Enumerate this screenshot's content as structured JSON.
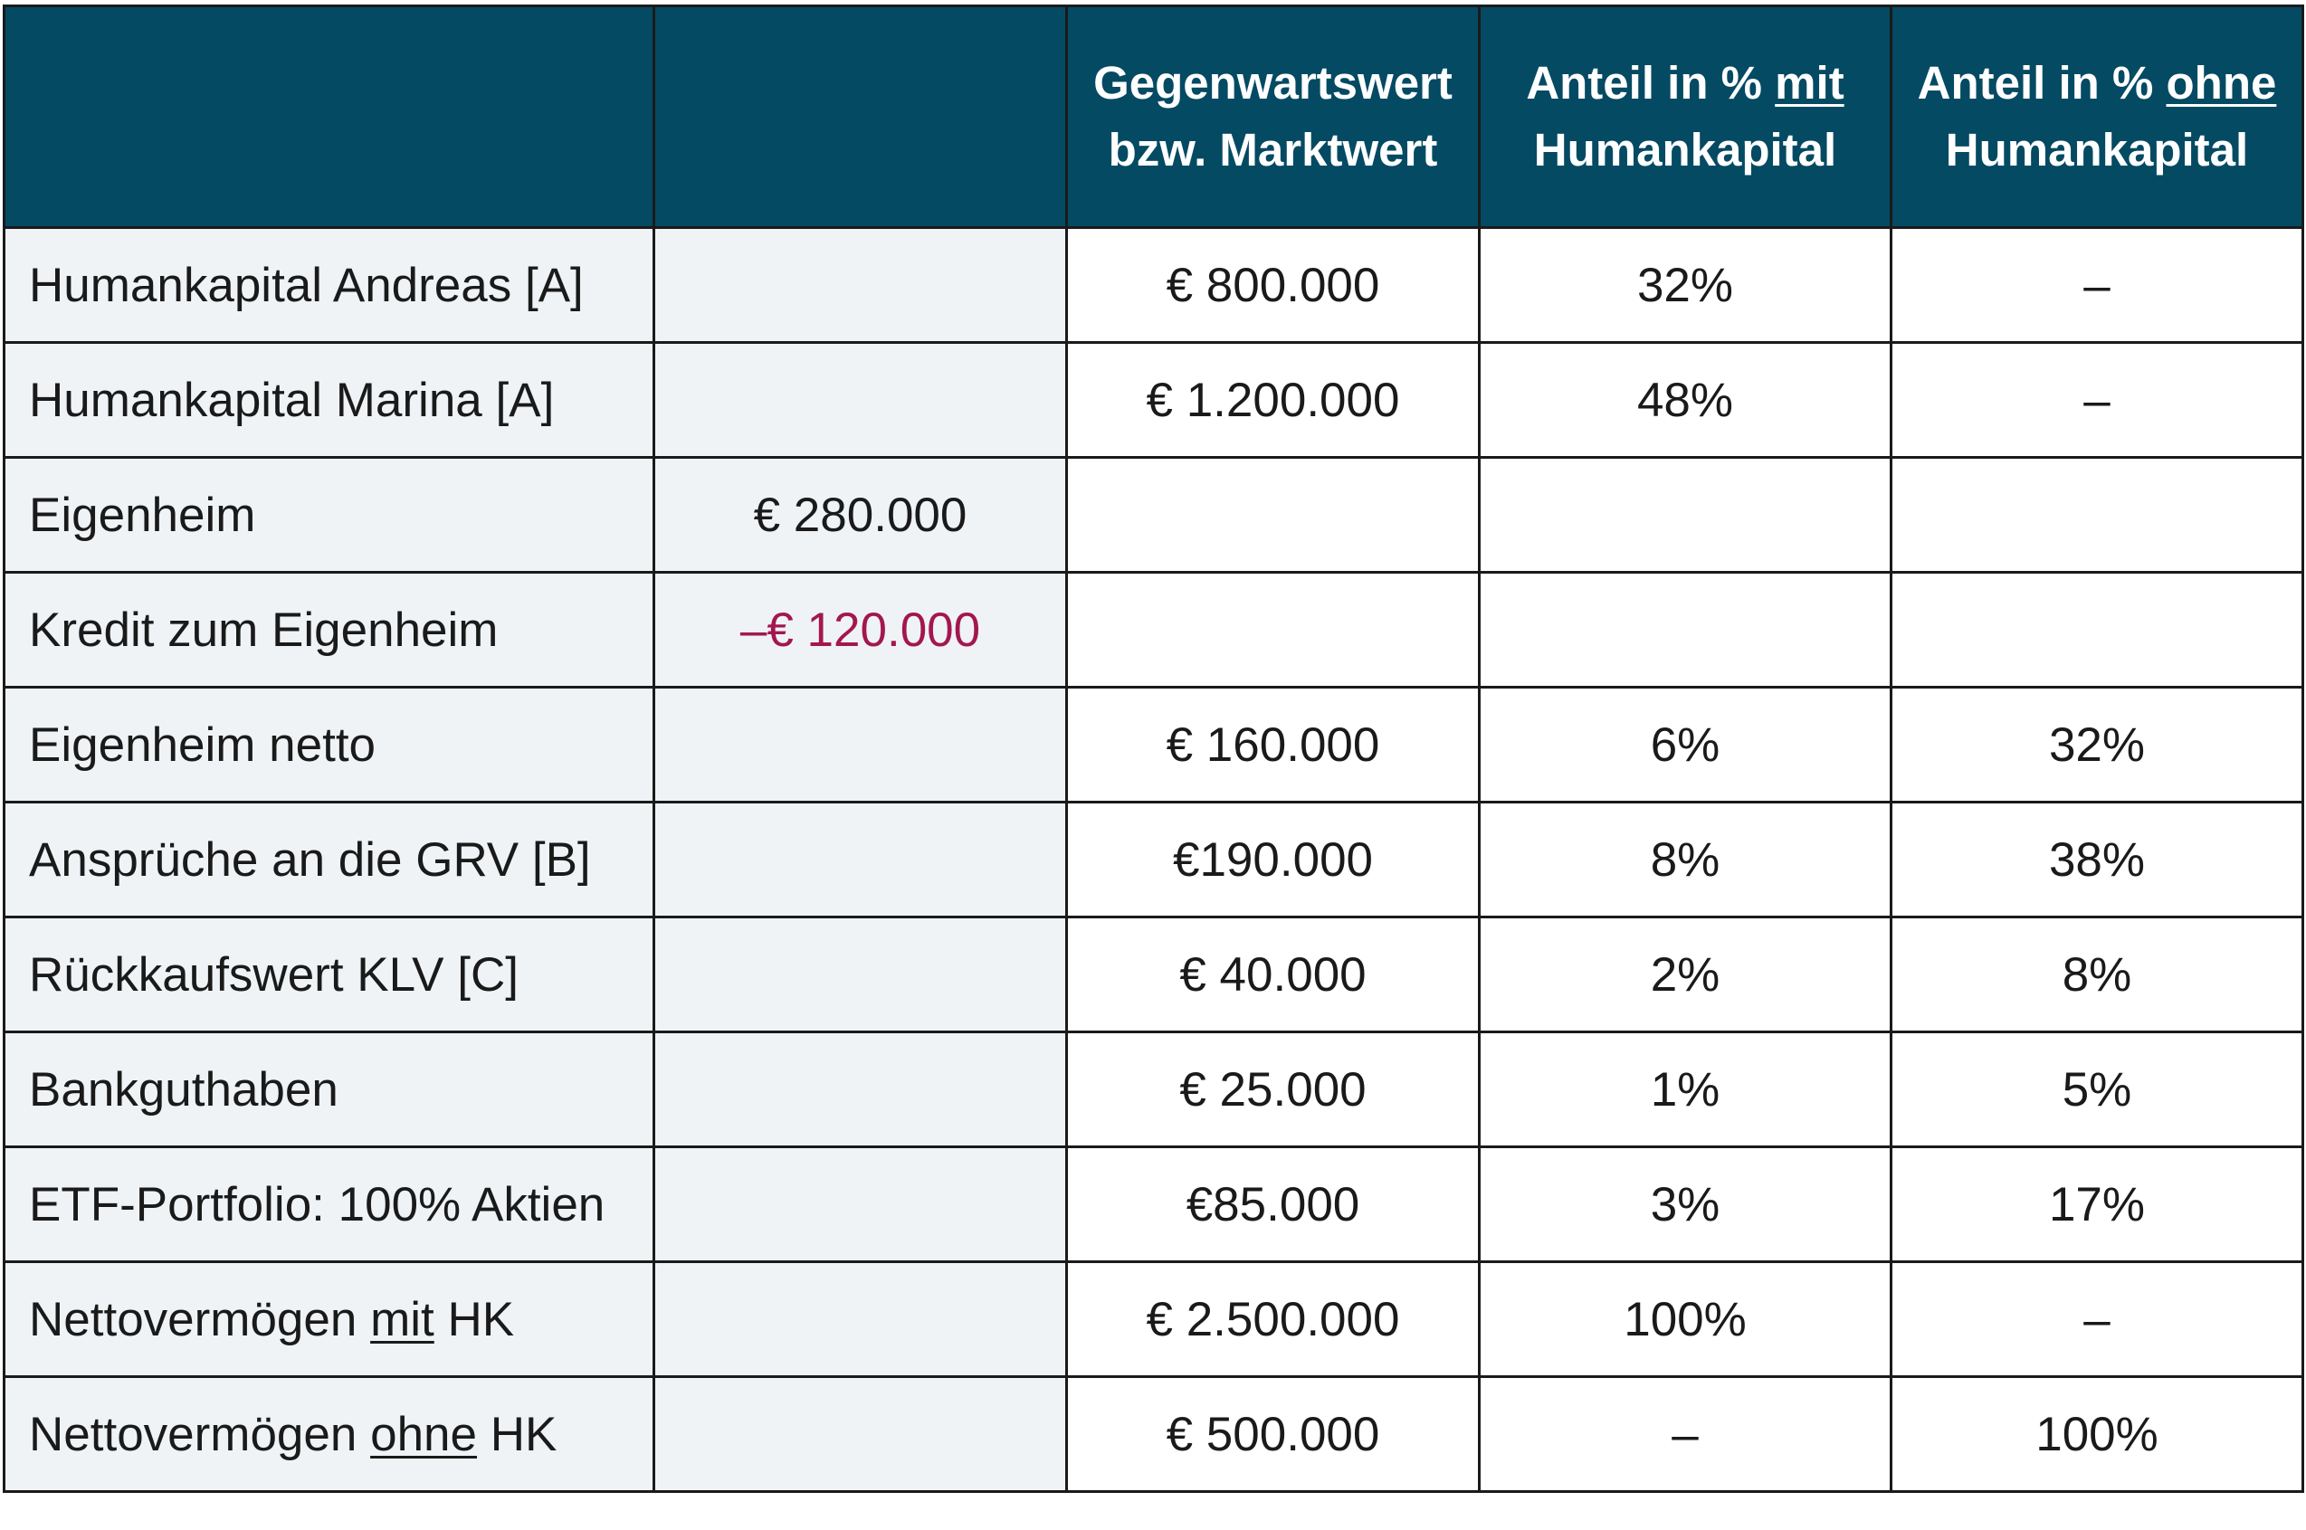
{
  "header": {
    "col1": "",
    "col2": "",
    "col3_line1": "Gegenwartswert",
    "col3_line2": "bzw. Marktwert",
    "col4_pre": "Anteil in % ",
    "col4_emph": "mit",
    "col4_line2": "Humankapital",
    "col5_pre": "Anteil in % ",
    "col5_emph": "ohne",
    "col5_line2": "Humankapital"
  },
  "rows": [
    {
      "label": "Humankapital Andreas [A]",
      "sub": "",
      "value": "€ 800.000",
      "pct_mit": "32%",
      "pct_ohne": "–"
    },
    {
      "label": "Humankapital Marina [A]",
      "sub": "",
      "value": "€ 1.200.000",
      "pct_mit": "48%",
      "pct_ohne": "–"
    },
    {
      "label": "Eigenheim",
      "sub": "€ 280.000",
      "value": "",
      "pct_mit": "",
      "pct_ohne": ""
    },
    {
      "label": "Kredit zum Eigenheim",
      "sub": "–€ 120.000",
      "value": "",
      "pct_mit": "",
      "pct_ohne": ""
    },
    {
      "label": "Eigenheim netto",
      "sub": "",
      "value": "€ 160.000",
      "pct_mit": "6%",
      "pct_ohne": "32%"
    },
    {
      "label": "Ansprüche an die GRV [B]",
      "sub": "",
      "value": "€190.000",
      "pct_mit": "8%",
      "pct_ohne": "38%"
    },
    {
      "label": "Rückkaufswert KLV [C]",
      "sub": "",
      "value": "€ 40.000",
      "pct_mit": "2%",
      "pct_ohne": "8%"
    },
    {
      "label": "Bankguthaben",
      "sub": "",
      "value": "€ 25.000",
      "pct_mit": "1%",
      "pct_ohne": "5%"
    },
    {
      "label": "ETF-Portfolio: 100% Aktien",
      "sub": "",
      "value": "€85.000",
      "pct_mit": "3%",
      "pct_ohne": "17%"
    },
    {
      "label_pre": "Nettovermögen ",
      "label_emph": "mit",
      "label_post": " HK",
      "sub": "",
      "value": "€ 2.500.000",
      "pct_mit": "100%",
      "pct_ohne": "–"
    },
    {
      "label_pre": "Nettovermögen ",
      "label_emph": "ohne",
      "label_post": " HK",
      "sub": "",
      "value": "€ 500.000",
      "pct_mit": "–",
      "pct_ohne": "100%"
    }
  ],
  "colors": {
    "header_bg": "#054a63",
    "label_bg": "#eff3f6",
    "negative_text": "#a3174e"
  }
}
